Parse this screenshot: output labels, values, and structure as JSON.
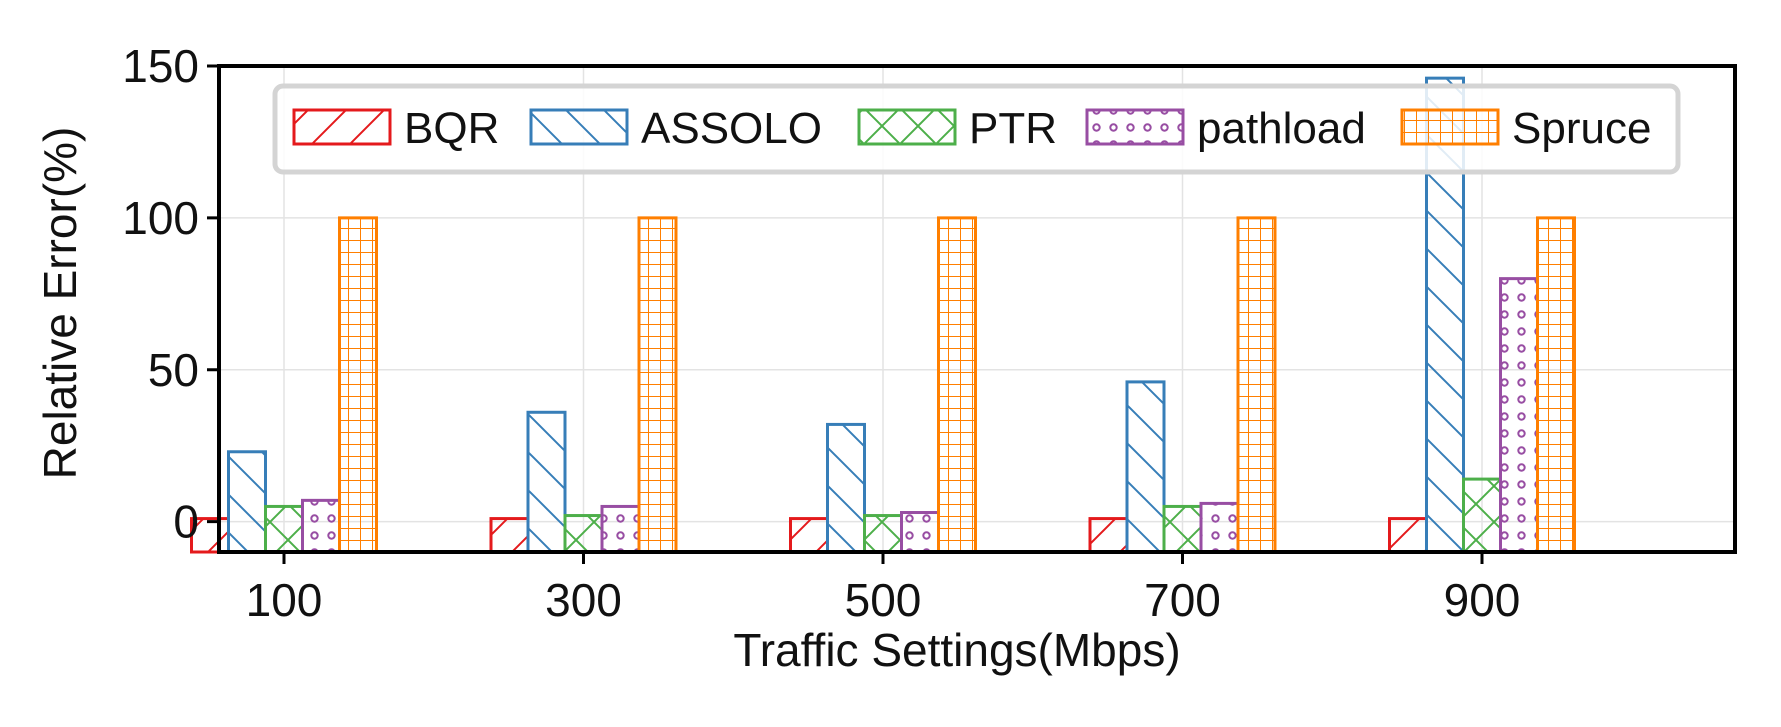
{
  "chart_data": {
    "type": "bar",
    "title": "",
    "xlabel": "Traffic Settings(Mbps)",
    "ylabel": "Relative Error(%)",
    "categories": [
      "100",
      "300",
      "500",
      "700",
      "900"
    ],
    "ylim": [
      -10,
      150
    ],
    "yticks": [
      "0",
      "50",
      "100",
      "150"
    ],
    "grid": true,
    "legend_position": "top",
    "series": [
      {
        "name": "BQR",
        "values": [
          1,
          1,
          1,
          1,
          1
        ],
        "color": "#e41a1c",
        "hatch": "diagonal-up"
      },
      {
        "name": "ASSOLO",
        "values": [
          23,
          36,
          32,
          46,
          146
        ],
        "color": "#377eb8",
        "hatch": "diagonal-down"
      },
      {
        "name": "PTR",
        "values": [
          5,
          2,
          2,
          5,
          14
        ],
        "color": "#4daf4a",
        "hatch": "cross"
      },
      {
        "name": "pathload",
        "values": [
          7,
          5,
          3,
          6,
          80
        ],
        "color": "#984ea3",
        "hatch": "circles"
      },
      {
        "name": "Spruce",
        "values": [
          100,
          100,
          100,
          100,
          100
        ],
        "color": "#ff7f00",
        "hatch": "grid"
      }
    ]
  }
}
